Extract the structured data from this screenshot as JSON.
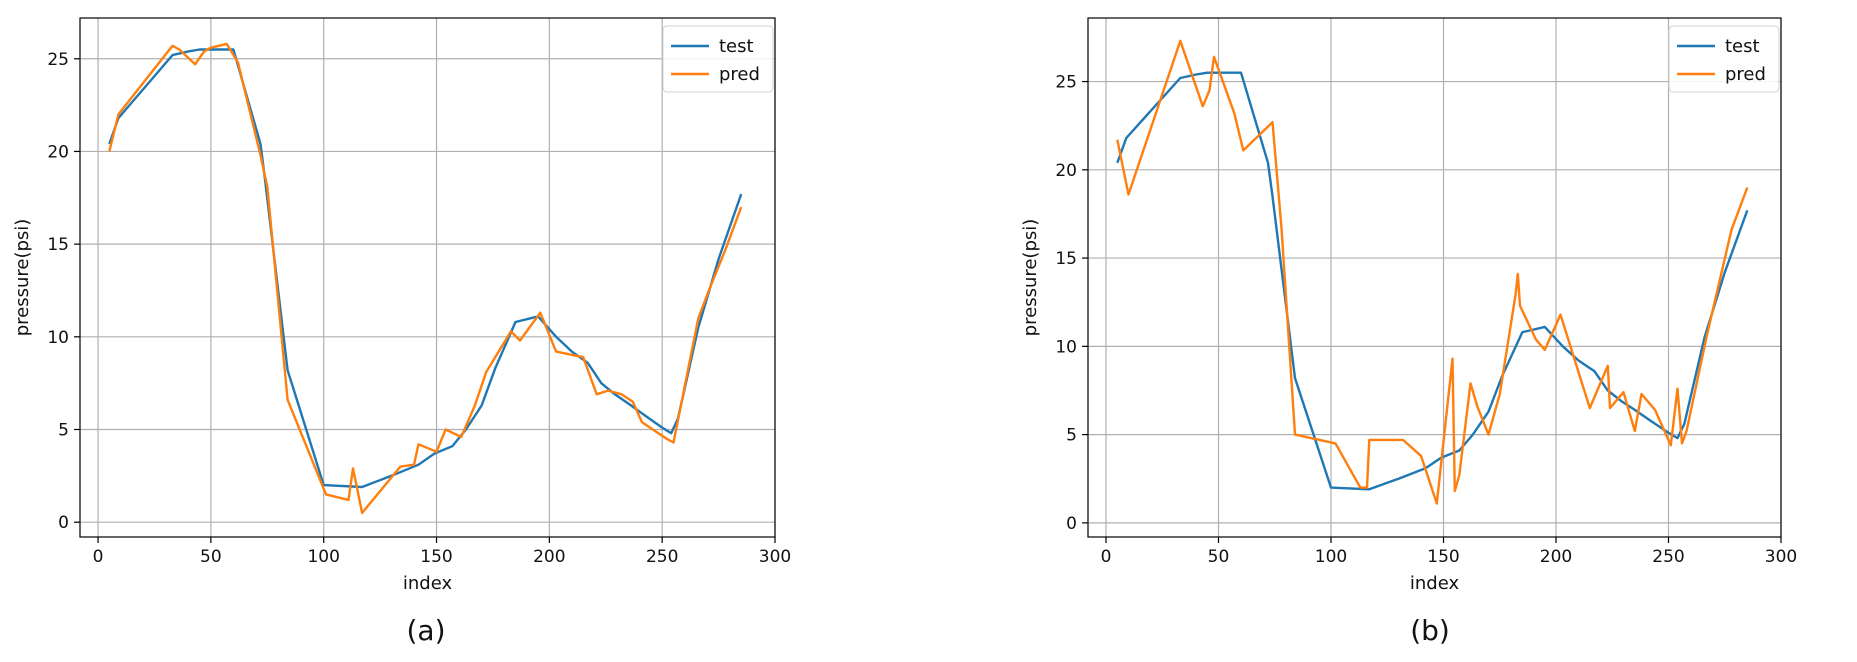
{
  "colors": {
    "test": "#1f77b4",
    "pred": "#ff7f0e",
    "grid": "#b0b0b0",
    "axis": "#000000"
  },
  "chart_data": [
    {
      "type": "line",
      "caption": "(a)",
      "xlabel": "index",
      "ylabel": "pressure(psi)",
      "xlim": [
        -8,
        300
      ],
      "ylim": [
        -0.8,
        27.2
      ],
      "xticks": [
        0,
        50,
        100,
        150,
        200,
        250,
        300
      ],
      "yticks": [
        0,
        5,
        10,
        15,
        20,
        25
      ],
      "grid": true,
      "legend_position": "top-right",
      "series": [
        {
          "name": "test",
          "color": "#1f77b4",
          "x": [
            5,
            9,
            33,
            40,
            45,
            50,
            55,
            60,
            72,
            74,
            84,
            100,
            117,
            130,
            142,
            149,
            157,
            163,
            170,
            176,
            185,
            195,
            203,
            210,
            217,
            223,
            229,
            235,
            243,
            250,
            254,
            257,
            266,
            275,
            285
          ],
          "y": [
            20.4,
            21.8,
            25.2,
            25.4,
            25.5,
            25.5,
            25.5,
            25.5,
            20.4,
            18.5,
            8.2,
            2.0,
            1.9,
            2.5,
            3.1,
            3.7,
            4.1,
            5.0,
            6.3,
            8.3,
            10.8,
            11.1,
            10.0,
            9.2,
            8.6,
            7.5,
            6.9,
            6.4,
            5.7,
            5.1,
            4.8,
            5.6,
            10.5,
            14.2,
            17.7
          ]
        },
        {
          "name": "pred",
          "color": "#ff7f0e",
          "x": [
            5,
            9,
            33,
            36,
            43,
            47,
            50,
            57,
            62,
            72,
            75,
            84,
            101,
            111,
            113,
            117,
            134,
            140,
            142,
            150,
            154,
            161,
            167,
            172,
            183,
            187,
            196,
            203,
            215,
            221,
            226,
            232,
            237,
            241,
            247,
            252,
            255,
            266,
            271,
            278,
            285
          ],
          "y": [
            20.0,
            22.0,
            25.7,
            25.5,
            24.7,
            25.4,
            25.6,
            25.8,
            24.8,
            19.8,
            18.1,
            6.6,
            1.5,
            1.2,
            2.9,
            0.5,
            3.0,
            3.1,
            4.2,
            3.8,
            5.0,
            4.6,
            6.3,
            8.1,
            10.3,
            9.8,
            11.3,
            9.2,
            8.9,
            6.9,
            7.1,
            6.9,
            6.5,
            5.4,
            4.9,
            4.5,
            4.3,
            11.0,
            12.6,
            14.7,
            17.0
          ]
        }
      ]
    },
    {
      "type": "line",
      "caption": "(b)",
      "xlabel": "index",
      "ylabel": "pressure(psi)",
      "xlim": [
        -8,
        300
      ],
      "ylim": [
        -0.8,
        28.6
      ],
      "xticks": [
        0,
        50,
        100,
        150,
        200,
        250,
        300
      ],
      "yticks": [
        0,
        5,
        10,
        15,
        20,
        25
      ],
      "grid": true,
      "legend_position": "top-right",
      "series": [
        {
          "name": "test",
          "color": "#1f77b4",
          "x": [
            5,
            9,
            33,
            40,
            45,
            50,
            55,
            60,
            72,
            74,
            84,
            100,
            117,
            130,
            142,
            149,
            157,
            163,
            170,
            176,
            185,
            195,
            203,
            210,
            217,
            223,
            229,
            235,
            243,
            250,
            254,
            257,
            266,
            275,
            285
          ],
          "y": [
            20.4,
            21.8,
            25.2,
            25.4,
            25.5,
            25.5,
            25.5,
            25.5,
            20.4,
            18.5,
            8.2,
            2.0,
            1.9,
            2.5,
            3.1,
            3.7,
            4.1,
            5.0,
            6.3,
            8.3,
            10.8,
            11.1,
            10.0,
            9.2,
            8.6,
            7.5,
            6.9,
            6.4,
            5.7,
            5.1,
            4.8,
            5.6,
            10.5,
            14.2,
            17.7
          ]
        },
        {
          "name": "pred",
          "color": "#ff7f0e",
          "x": [
            5,
            10,
            33,
            43,
            46,
            48,
            57,
            61,
            74,
            78,
            84,
            102,
            113,
            116,
            117,
            132,
            140,
            147,
            154,
            155,
            157,
            162,
            165,
            170,
            175,
            182,
            183,
            184,
            191,
            195,
            202,
            215,
            219,
            223,
            224,
            230,
            235,
            238,
            244,
            251,
            254,
            256,
            258,
            267,
            278,
            285
          ],
          "y": [
            21.7,
            18.6,
            27.3,
            23.6,
            24.5,
            26.4,
            23.2,
            21.1,
            22.7,
            16.7,
            5.0,
            4.5,
            2.0,
            2.0,
            4.7,
            4.7,
            3.8,
            1.1,
            9.3,
            1.8,
            2.7,
            7.9,
            6.6,
            5.0,
            7.3,
            12.9,
            14.1,
            12.3,
            10.4,
            9.8,
            11.8,
            6.5,
            7.7,
            8.9,
            6.5,
            7.4,
            5.2,
            7.3,
            6.4,
            4.4,
            7.6,
            4.5,
            5.2,
            10.6,
            16.6,
            19.0
          ]
        }
      ]
    }
  ]
}
